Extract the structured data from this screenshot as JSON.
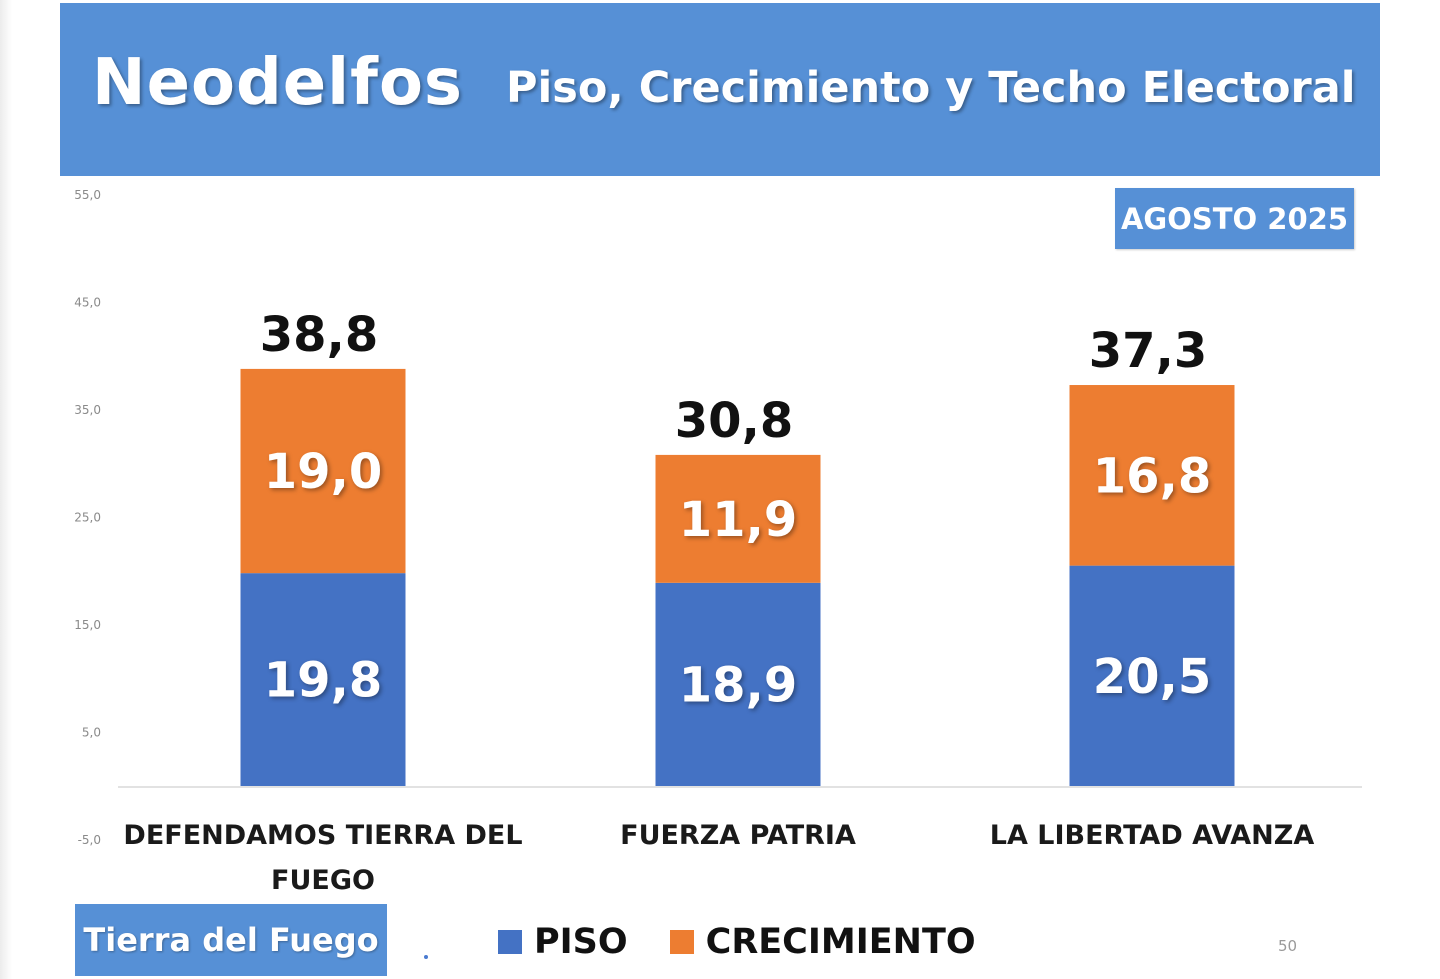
{
  "header": {
    "brand": "Neodelfos",
    "subtitle": "Piso, Crecimiento y Techo Electoral"
  },
  "date_badge": "AGOSTO 2025",
  "region_badge": "Tierra del Fuego",
  "page_number": "50",
  "colors": {
    "header_bg": "#5690d6",
    "piso": "#4472c4",
    "crecimiento": "#ed7d31"
  },
  "chart_data": {
    "type": "bar",
    "stacked": true,
    "categories": [
      "DEFENDAMOS TIERRA DEL FUEGO",
      "FUERZA PATRIA",
      "LA LIBERTAD AVANZA"
    ],
    "category_label_lines": [
      [
        "DEFENDAMOS TIERRA DEL",
        "FUEGO"
      ],
      [
        "FUERZA PATRIA"
      ],
      [
        "LA LIBERTAD AVANZA"
      ]
    ],
    "series": [
      {
        "name": "PISO",
        "values": [
          19.8,
          18.9,
          20.5
        ],
        "labels": [
          "19,8",
          "18,9",
          "20,5"
        ],
        "color": "#4472c4"
      },
      {
        "name": "CRECIMIENTO",
        "values": [
          19.0,
          11.9,
          16.8
        ],
        "labels": [
          "19,0",
          "11,9",
          "16,8"
        ],
        "color": "#ed7d31"
      }
    ],
    "totals": [
      38.8,
      30.8,
      37.3
    ],
    "total_labels": [
      "38,8",
      "30,8",
      "37,3"
    ],
    "y_ticks": [
      55,
      45,
      35,
      25,
      15,
      5,
      -5
    ],
    "y_tick_labels": [
      "55,0",
      "45,0",
      "35,0",
      "25,0",
      "15,0",
      "5,0",
      "-5,0"
    ],
    "ylim": [
      -5,
      55
    ],
    "grid": false,
    "legend_position": "bottom"
  }
}
